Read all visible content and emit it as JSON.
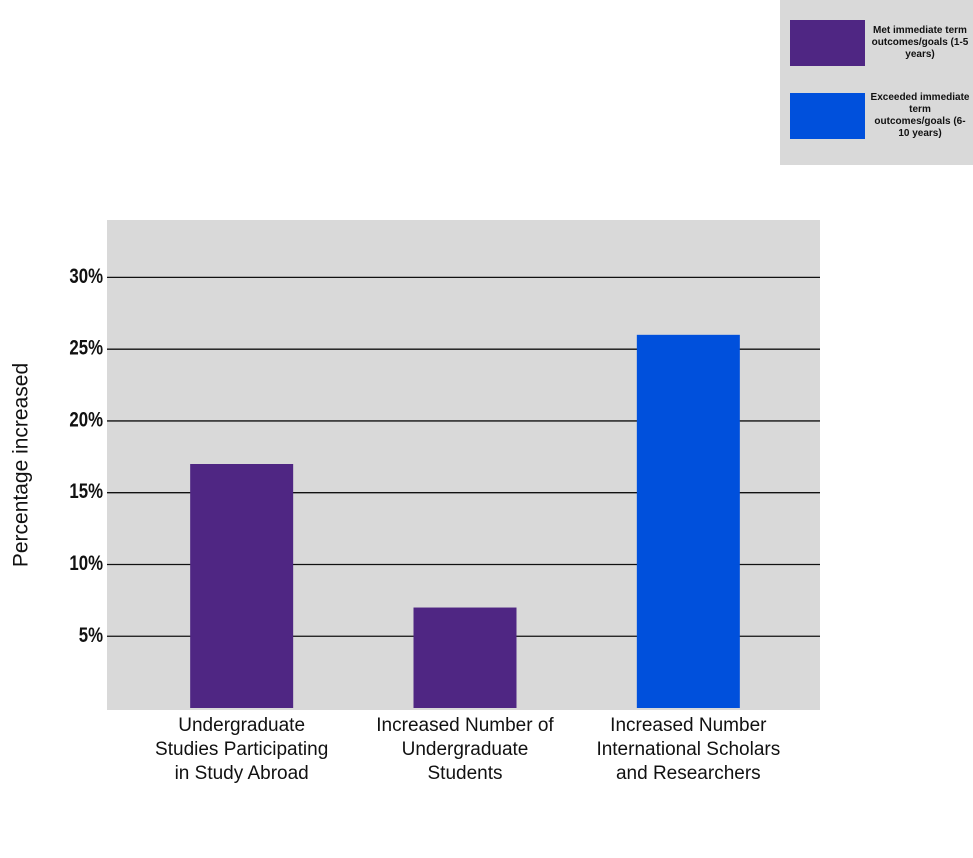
{
  "chart_data": {
    "type": "bar",
    "ylabel": "Percentage increased",
    "categories": [
      "Undergraduate Studies Participating in Study Abroad",
      "Increased Number of Undergraduate Students",
      "Increased Number International Scholars and Researchers"
    ],
    "series": [
      {
        "name": "Met immediate term outcomes/goals (1-5 years)",
        "color": "#4f2683",
        "values": [
          17,
          7,
          null
        ]
      },
      {
        "name": "Exceeded immediate term outcomes/goals (6-10 years)",
        "color": "#0050dc",
        "values": [
          null,
          null,
          26
        ]
      }
    ],
    "ylim": [
      0,
      34
    ],
    "yticks": [
      {
        "value": 5,
        "label": "5%"
      },
      {
        "value": 10,
        "label": "10%"
      },
      {
        "value": 15,
        "label": "15%"
      },
      {
        "value": 20,
        "label": "20%"
      },
      {
        "value": 25,
        "label": "25%"
      },
      {
        "value": 30,
        "label": "30%"
      }
    ],
    "grid": true,
    "legend": "top-right"
  }
}
